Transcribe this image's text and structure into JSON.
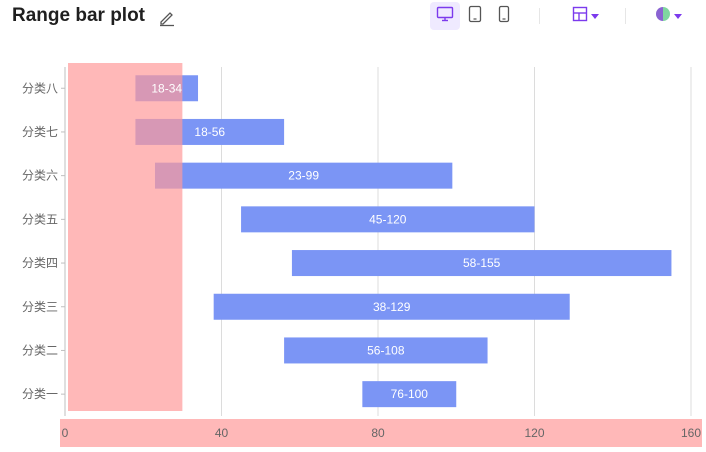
{
  "header": {
    "title": "Range bar plot",
    "toolbar": {
      "device_buttons": [
        "desktop-icon",
        "tablet-icon",
        "mobile-icon"
      ],
      "active_device": "desktop-icon",
      "layout_button": "layout-icon",
      "theme_button": "theme-icon"
    }
  },
  "colors": {
    "bar": "#7b95f5",
    "bar_overlap": "#a06db8",
    "highlight_band": "#ffb8b8",
    "accent": "#7c3aed",
    "grid": "#dcdcdc",
    "tick_text": "#666666"
  },
  "chart_data": {
    "type": "bar",
    "orientation": "horizontal",
    "range": true,
    "categories": [
      "分类一",
      "分类二",
      "分类三",
      "分类四",
      "分类五",
      "分类六",
      "分类七",
      "分类八"
    ],
    "ranges": [
      [
        76,
        100
      ],
      [
        56,
        108
      ],
      [
        38,
        129
      ],
      [
        58,
        155
      ],
      [
        45,
        120
      ],
      [
        23,
        99
      ],
      [
        18,
        56
      ],
      [
        18,
        34
      ]
    ],
    "labels": [
      "76-100",
      "56-108",
      "38-129",
      "58-155",
      "45-120",
      "23-99",
      "18-56",
      "18-34"
    ],
    "xlim": [
      0,
      160
    ],
    "xticks": [
      "0",
      "40",
      "80",
      "120",
      "160"
    ],
    "highlight_region": [
      0,
      30
    ],
    "grid": true,
    "title": "",
    "xlabel": "",
    "ylabel": ""
  }
}
